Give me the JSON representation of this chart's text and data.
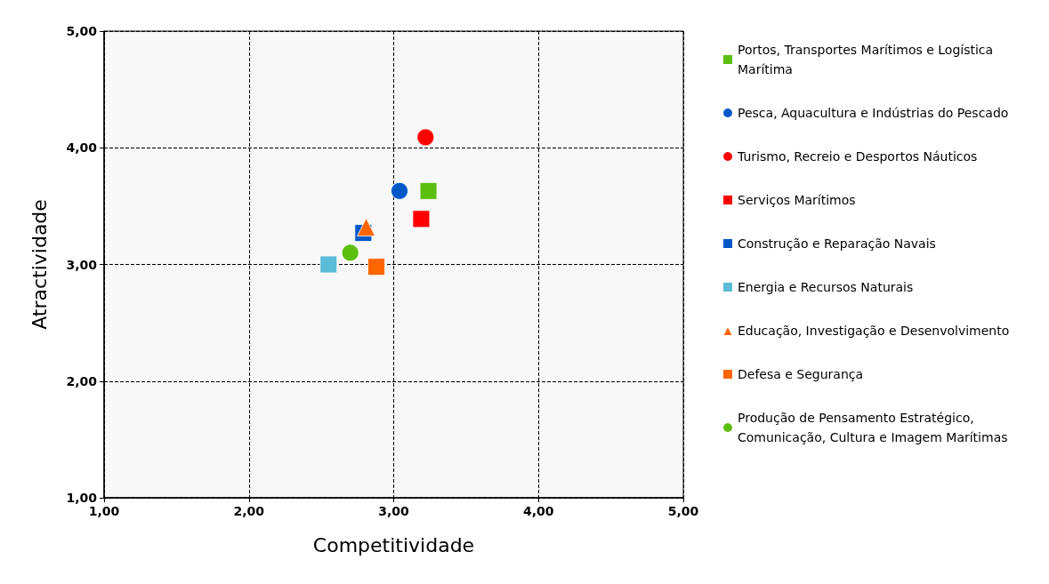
{
  "chart_data": {
    "type": "scatter",
    "xlabel": "Competitividade",
    "ylabel": "Atractividade",
    "xlim": [
      1,
      5
    ],
    "xticks": [
      {
        "value": 1,
        "label": "1,00"
      },
      {
        "value": 2,
        "label": "2,00"
      },
      {
        "value": 3,
        "label": "3,00"
      },
      {
        "value": 4,
        "label": "4,00"
      },
      {
        "value": 5,
        "label": "5,00"
      }
    ],
    "ylim": [
      1,
      5
    ],
    "yticks": [
      {
        "value": 1,
        "label": "1,00"
      },
      {
        "value": 2,
        "label": "2,00"
      },
      {
        "value": 3,
        "label": "3,00"
      },
      {
        "value": 4,
        "label": "4,00"
      },
      {
        "value": 5,
        "label": "5,00"
      }
    ],
    "grid": true,
    "legend": "right",
    "series": [
      {
        "name": "Portos, Transportes Marítimos e Logística Marítima",
        "color": "#5cbf10",
        "marker": "square",
        "x": [
          3.24
        ],
        "values": [
          3.63
        ]
      },
      {
        "name": "Pesca, Aquacultura e Indústrias do Pescado",
        "color": "#0058c8",
        "marker": "circle",
        "x": [
          3.04
        ],
        "values": [
          3.63
        ]
      },
      {
        "name": "Turismo, Recreio e Desportos Náuticos",
        "color": "#ff0000",
        "marker": "circle",
        "x": [
          3.22
        ],
        "values": [
          4.09
        ]
      },
      {
        "name": "Serviços Marítimos",
        "color": "#ff0000",
        "marker": "square",
        "x": [
          3.19
        ],
        "values": [
          3.39
        ]
      },
      {
        "name": "Construção e Reparação Navais",
        "color": "#0058c8",
        "marker": "square",
        "x": [
          2.79
        ],
        "values": [
          3.27
        ]
      },
      {
        "name": "Energia e Recursos Naturais",
        "color": "#5bbcd8",
        "marker": "square",
        "x": [
          2.55
        ],
        "values": [
          3.0
        ]
      },
      {
        "name": "Educação, Investigação e Desenvolvimento",
        "color": "#ff6600",
        "marker": "triangle",
        "x": [
          2.81
        ],
        "values": [
          3.32
        ]
      },
      {
        "name": "Defesa e Segurança",
        "color": "#ff6600",
        "marker": "square",
        "x": [
          2.88
        ],
        "values": [
          2.98
        ]
      },
      {
        "name": "Produção de Pensamento Estratégico, Comunicação, Cultura e Imagem Marítimas",
        "color": "#5cbf10",
        "marker": "circle",
        "x": [
          2.7
        ],
        "values": [
          3.1
        ]
      }
    ]
  }
}
